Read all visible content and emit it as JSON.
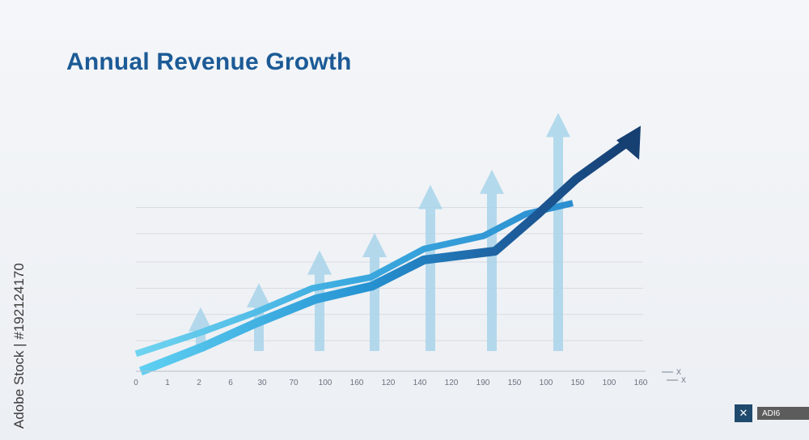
{
  "chart_data": {
    "type": "line",
    "title": "Annual Revenue Growth",
    "x_tick_labels": [
      "0",
      "1",
      "2",
      "6",
      "30",
      "70",
      "100",
      "160",
      "120",
      "140",
      "120",
      "190",
      "150",
      "100",
      "150",
      "100",
      "160"
    ],
    "legend": [
      "X",
      "X"
    ],
    "grid": true,
    "series": [
      {
        "color": "#2a9ed8",
        "values": [
          0.08,
          0.18,
          0.27,
          0.38,
          0.43,
          0.56,
          0.62,
          0.72,
          0.77
        ]
      },
      {
        "color": "#1f6fb8",
        "values": [
          0.0,
          0.11,
          0.22,
          0.33,
          0.39,
          0.51,
          0.55,
          0.72,
          0.88,
          1.05
        ]
      }
    ],
    "arrow_markers": [
      0.36,
      0.47,
      0.62,
      0.7,
      0.92,
      0.99,
      1.25
    ]
  },
  "side_label": "Adobe Stock | #192124170",
  "badge": {
    "icon": "close-icon",
    "icon_glyph": "✕",
    "text": "ADI6"
  }
}
